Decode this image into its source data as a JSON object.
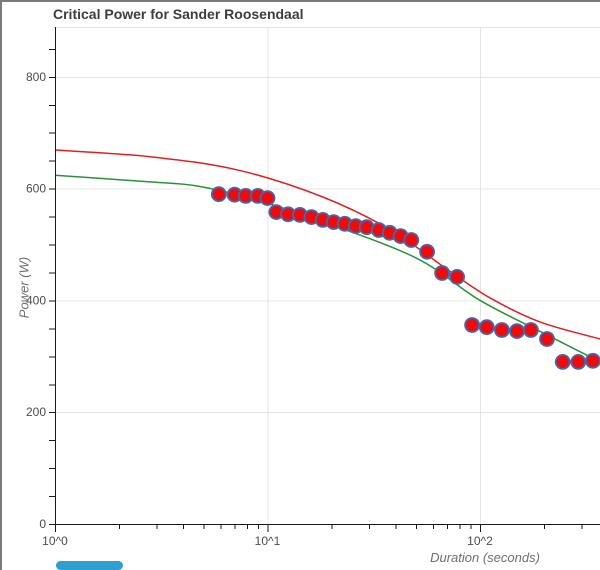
{
  "chart_data": {
    "type": "scatter",
    "title": "Critical Power for Sander Roosendaal",
    "xlabel": "Duration (seconds)",
    "ylabel": "Power (W)",
    "x_scale": "log",
    "xlim": [
      1,
      370
    ],
    "ylim": [
      0,
      889
    ],
    "grid": true,
    "legend": "none",
    "x_major_ticks": [
      {
        "value": 1,
        "label": "10^0"
      },
      {
        "value": 10,
        "label": "10^1"
      },
      {
        "value": 100,
        "label": "10^2"
      }
    ],
    "x_minor_ticks": [
      2,
      3,
      4,
      5,
      6,
      7,
      8,
      9,
      20,
      30,
      40,
      50,
      60,
      70,
      80,
      90,
      200,
      300
    ],
    "y_major_ticks": [
      {
        "value": 0,
        "label": "0"
      },
      {
        "value": 200,
        "label": "200"
      },
      {
        "value": 400,
        "label": "400"
      },
      {
        "value": 600,
        "label": "600"
      },
      {
        "value": 800,
        "label": "800"
      }
    ],
    "y_minor_step": 50,
    "y_minor_max": 850,
    "series": [
      {
        "name": "measured-points",
        "type": "scatter",
        "fill": "#ec0c0c",
        "stroke": "#4169b2",
        "points": [
          [
            5.9,
            590
          ],
          [
            7,
            589
          ],
          [
            7.9,
            587
          ],
          [
            9,
            587
          ],
          [
            10,
            583
          ],
          [
            11,
            558
          ],
          [
            12.5,
            554
          ],
          [
            14.2,
            553
          ],
          [
            16.1,
            549
          ],
          [
            18.2,
            544
          ],
          [
            20.5,
            540
          ],
          [
            23.1,
            537
          ],
          [
            26,
            533
          ],
          [
            29.3,
            531
          ],
          [
            33.4,
            526
          ],
          [
            37.6,
            521
          ],
          [
            42.3,
            515
          ],
          [
            47.5,
            508
          ],
          [
            56.4,
            487
          ],
          [
            66.3,
            449
          ],
          [
            78,
            442
          ],
          [
            91.8,
            356
          ],
          [
            107.7,
            352
          ],
          [
            126.8,
            347
          ],
          [
            149.3,
            345
          ],
          [
            173.5,
            347
          ],
          [
            206.6,
            331
          ],
          [
            244.9,
            290
          ],
          [
            290.1,
            290
          ],
          [
            339.7,
            292
          ]
        ]
      },
      {
        "name": "red-curve",
        "type": "line",
        "color": "#e02020",
        "points": [
          [
            1,
            669
          ],
          [
            2.8,
            657
          ],
          [
            7.3,
            633
          ],
          [
            18.2,
            585
          ],
          [
            38,
            526
          ],
          [
            71,
            454
          ],
          [
            112,
            404
          ],
          [
            193,
            361
          ],
          [
            368,
            331
          ]
        ]
      },
      {
        "name": "green-curve",
        "type": "line",
        "color": "#2a9235",
        "points": [
          [
            1,
            624
          ],
          [
            2.8,
            612
          ],
          [
            4.6,
            605
          ],
          [
            8.8,
            580
          ],
          [
            17.8,
            542
          ],
          [
            50,
            476
          ],
          [
            99,
            401
          ],
          [
            193,
            344
          ],
          [
            368,
            290
          ]
        ]
      }
    ]
  },
  "colors": {
    "gridline": "#e4e4e4",
    "axis": "#1a1a1a",
    "window_border": "#7a7a7a",
    "scrollbar_thumb": "#2f9fd3"
  }
}
